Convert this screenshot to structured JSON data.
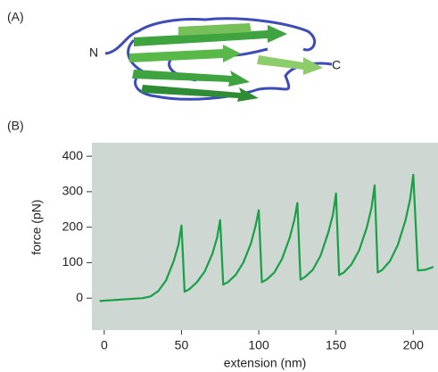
{
  "figure": {
    "panel_a_label": "(A)",
    "panel_b_label": "(B)",
    "n_terminus": "N",
    "c_terminus": "C"
  },
  "chart_data": {
    "type": "line",
    "x_label": "extension (nm)",
    "y_label": "force (pN)",
    "x": [
      -3,
      25,
      27,
      30,
      35,
      40,
      45,
      48,
      50,
      52,
      55,
      60,
      65,
      70,
      73,
      75,
      77,
      80,
      85,
      90,
      95,
      98,
      100,
      102,
      105,
      110,
      115,
      120,
      123,
      125,
      127,
      130,
      135,
      140,
      145,
      148,
      150,
      152,
      155,
      160,
      165,
      170,
      173,
      175,
      177,
      180,
      185,
      190,
      195,
      198,
      200,
      203,
      208,
      213
    ],
    "series": [
      {
        "name": "force",
        "color": "#17a046",
        "values": [
          -8,
          0,
          2,
          5,
          20,
          50,
          105,
          150,
          205,
          18,
          25,
          45,
          75,
          125,
          170,
          220,
          38,
          45,
          65,
          100,
          155,
          205,
          248,
          45,
          52,
          72,
          110,
          170,
          220,
          268,
          52,
          60,
          80,
          120,
          185,
          235,
          295,
          65,
          72,
          95,
          135,
          200,
          255,
          318,
          72,
          80,
          105,
          150,
          220,
          280,
          348,
          78,
          80,
          88
        ]
      }
    ],
    "xlim": [
      -8,
      216
    ],
    "ylim": [
      -90,
      438
    ],
    "xticks": [
      0,
      50,
      100,
      150,
      200
    ],
    "yticks": [
      0,
      100,
      200,
      300,
      400
    ],
    "background": "#cfd7d2"
  }
}
